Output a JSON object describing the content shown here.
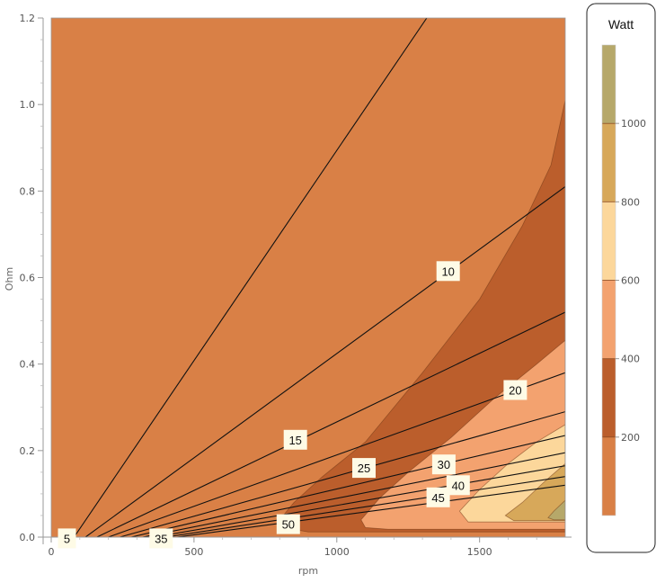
{
  "chart_data": {
    "type": "contour",
    "xlabel": "rpm",
    "ylabel": "Ohm",
    "xlim": [
      0,
      1800
    ],
    "ylim": [
      0,
      1.2
    ],
    "x_ticks": [
      "0",
      "500",
      "1000",
      "1500"
    ],
    "x_tick_values": [
      0,
      500,
      1000,
      1500
    ],
    "y_ticks": [
      "0.0",
      "0.2",
      "0.4",
      "0.6",
      "0.8",
      "1.0",
      "1.2"
    ],
    "y_tick_values": [
      0,
      0.2,
      0.4,
      0.6,
      0.8,
      1.0,
      1.2
    ],
    "power_contour_levels": [
      200,
      400,
      600,
      800,
      1000
    ],
    "power_band_colors": [
      "#d98046",
      "#bb5e2c",
      "#f3a26f",
      "#fcd79b",
      "#d7a85a",
      "#b6a86a"
    ],
    "current_lines": [
      {
        "label": "5",
        "x_intercept": 80,
        "x_end": 1315,
        "y_end": 1.2
      },
      {
        "label": "10",
        "x_intercept": 120,
        "x_end": 1800,
        "y_end": 0.81
      },
      {
        "label": "15",
        "x_intercept": 160,
        "x_end": 1800,
        "y_end": 0.52
      },
      {
        "label": "20",
        "x_intercept": 200,
        "x_end": 1800,
        "y_end": 0.38
      },
      {
        "label": "25",
        "x_intercept": 240,
        "x_end": 1800,
        "y_end": 0.29
      },
      {
        "label": "30",
        "x_intercept": 280,
        "x_end": 1800,
        "y_end": 0.235
      },
      {
        "label": "35",
        "x_intercept": 320,
        "x_end": 1800,
        "y_end": 0.195
      },
      {
        "label": "40",
        "x_intercept": 360,
        "x_end": 1800,
        "y_end": 0.165
      },
      {
        "label": "45",
        "x_intercept": 400,
        "x_end": 1800,
        "y_end": 0.14
      },
      {
        "label": "50",
        "x_intercept": 440,
        "x_end": 1800,
        "y_end": 0.12
      }
    ],
    "current_line_labels": [
      {
        "text": "5",
        "x": 55,
        "y": -0.003
      },
      {
        "text": "10",
        "x": 1390,
        "y": 0.615
      },
      {
        "text": "15",
        "x": 855,
        "y": 0.225
      },
      {
        "text": "20",
        "x": 1625,
        "y": 0.34
      },
      {
        "text": "25",
        "x": 1095,
        "y": 0.16
      },
      {
        "text": "30",
        "x": 1375,
        "y": 0.168
      },
      {
        "text": "35",
        "x": 385,
        "y": -0.003
      },
      {
        "text": "40",
        "x": 1425,
        "y": 0.12
      },
      {
        "text": "45",
        "x": 1355,
        "y": 0.092
      },
      {
        "text": "50",
        "x": 830,
        "y": 0.03
      }
    ],
    "legend": {
      "title": "Watt",
      "ticks": [
        "200",
        "400",
        "600",
        "800",
        "1000"
      ],
      "tick_values": [
        200,
        400,
        600,
        800,
        1000
      ],
      "range": [
        0,
        1200
      ],
      "placement": "right"
    }
  }
}
